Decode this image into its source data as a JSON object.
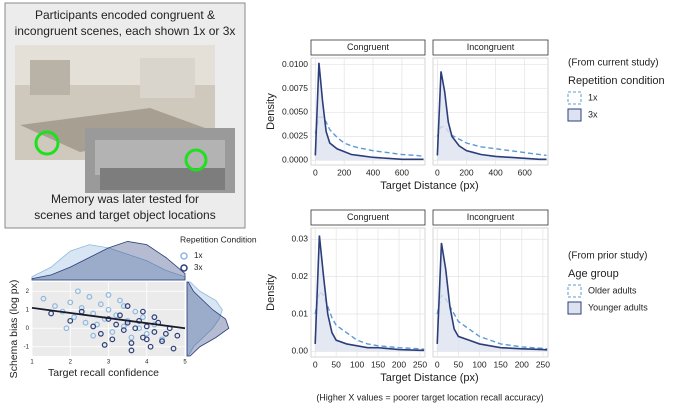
{
  "photo_panel": {
    "top_text": [
      "Participants encoded congruent &",
      "incongruent scenes, each shown 1x or 3x"
    ],
    "bottom_text": [
      "Memory was later tested for",
      "scenes and target object locations"
    ]
  },
  "footnote": "(Higher X values = poorer target location recall accuracy)",
  "chart_data": [
    {
      "type": "density",
      "facets": [
        "Congruent",
        "Incongruent"
      ],
      "xlabel": "Target Distance (px)",
      "ylabel": "Density",
      "legend_note": "(From current study)",
      "legend_title": "Repetition condition",
      "x": [
        0,
        25,
        50,
        75,
        100,
        150,
        200,
        250,
        300,
        400,
        500,
        600,
        700,
        750
      ],
      "xlim": [
        -30,
        760
      ],
      "xticks": [
        0,
        200,
        400,
        600
      ],
      "ylim": [
        -0.0005,
        0.0107
      ],
      "yticks": [
        {
          "value": 0,
          "label": "0.0000"
        },
        {
          "value": 0.0025,
          "label": "0.0025"
        },
        {
          "value": 0.005,
          "label": "0.0050"
        },
        {
          "value": 0.0075,
          "label": "0.0075"
        },
        {
          "value": 0.01,
          "label": "0.0100"
        }
      ],
      "series": [
        {
          "name": "1x",
          "color": "#5b9bd5",
          "dashed": true,
          "values": [
            [
              0.0028,
              0.0045,
              0.0045,
              0.004,
              0.0032,
              0.0024,
              0.0018,
              0.0015,
              0.0013,
              0.001,
              0.0008,
              0.0006,
              0.0005,
              0.0004
            ],
            [
              0.0025,
              0.0035,
              0.0035,
              0.003,
              0.0026,
              0.0022,
              0.0018,
              0.0016,
              0.0014,
              0.0012,
              0.001,
              0.0008,
              0.0006,
              0.0005
            ]
          ]
        },
        {
          "name": "3x",
          "color": "#2c3e7a",
          "fill": "#dde2f0",
          "values": [
            [
              0.0005,
              0.0102,
              0.0062,
              0.003,
              0.0018,
              0.0012,
              0.0009,
              0.0006,
              0.0005,
              0.0003,
              0.0002,
              0.0001,
              0.0001,
              0.0001
            ],
            [
              0.0005,
              0.0093,
              0.0072,
              0.004,
              0.0025,
              0.0015,
              0.001,
              0.0008,
              0.0006,
              0.0004,
              0.0003,
              0.0002,
              0.0001,
              0.0001
            ]
          ]
        }
      ]
    },
    {
      "type": "density",
      "facets": [
        "Congruent",
        "Incongruent"
      ],
      "xlabel": "Target Distance (px)",
      "ylabel": "Density",
      "legend_note": "(From prior study)",
      "legend_title": "Age group",
      "x": [
        0,
        10,
        20,
        30,
        40,
        50,
        75,
        100,
        125,
        150,
        200,
        250,
        260
      ],
      "xlim": [
        -10,
        262
      ],
      "xticks": [
        0,
        50,
        100,
        150,
        200,
        250
      ],
      "ylim": [
        -0.0015,
        0.033
      ],
      "yticks": [
        {
          "value": 0,
          "label": "0.00"
        },
        {
          "value": 0.01,
          "label": "0.01"
        },
        {
          "value": 0.02,
          "label": "0.02"
        },
        {
          "value": 0.03,
          "label": "0.03"
        }
      ],
      "series": [
        {
          "name": "Older adults",
          "color": "#5b9bd5",
          "dashed": true,
          "values": [
            [
              0.01,
              0.016,
              0.015,
              0.012,
              0.009,
              0.007,
              0.005,
              0.003,
              0.002,
              0.0015,
              0.001,
              0.0007,
              0.0006
            ],
            [
              0.01,
              0.015,
              0.014,
              0.012,
              0.01,
              0.008,
              0.006,
              0.004,
              0.003,
              0.002,
              0.0012,
              0.0008,
              0.0007
            ]
          ]
        },
        {
          "name": "Younger adults",
          "color": "#2c3e7a",
          "fill": "#dde2f0",
          "values": [
            [
              0.002,
              0.031,
              0.02,
              0.01,
              0.005,
              0.003,
              0.002,
              0.0015,
              0.001,
              0.001,
              0.0005,
              0.0003,
              0.0003
            ],
            [
              0.002,
              0.029,
              0.022,
              0.012,
              0.006,
              0.004,
              0.003,
              0.002,
              0.0015,
              0.001,
              0.0007,
              0.0005,
              0.0004
            ]
          ]
        }
      ]
    },
    {
      "type": "scatter",
      "xlabel": "Target recall confidence",
      "ylabel": "Schema bias (log px)",
      "legend_title": "Repetition Condition",
      "xlim": [
        1,
        5
      ],
      "xticks": [
        1,
        2,
        3,
        4,
        5
      ],
      "ylim": [
        -1.5,
        2.5
      ],
      "yticks": [
        -1,
        0,
        1,
        2
      ],
      "trend": {
        "x": [
          1,
          5
        ],
        "y": [
          1.1,
          0.0
        ],
        "color": "#1a1a2e"
      },
      "density_x": [
        1,
        1.5,
        2,
        2.5,
        3,
        3.5,
        4,
        4.5,
        5
      ],
      "density_y": [
        -1.5,
        -1,
        -0.5,
        0,
        0.5,
        1,
        1.5,
        2,
        2.5
      ],
      "density_lim": [
        0,
        0.7
      ],
      "series": [
        {
          "name": "1x",
          "color": "#8fb8e0",
          "x": [
            1.3,
            1.6,
            1.8,
            2.0,
            2.1,
            2.3,
            2.4,
            2.5,
            2.6,
            2.7,
            2.8,
            2.9,
            3.0,
            3.1,
            3.2,
            3.3,
            3.4,
            3.5,
            3.6,
            3.7,
            3.8,
            3.9,
            4.0,
            4.2,
            4.4,
            2.2,
            2.6,
            3.0,
            3.4,
            1.9
          ],
          "values": [
            1.6,
            1.2,
            0.9,
            1.4,
            0.6,
            1.1,
            0.3,
            1.7,
            0.8,
            0.2,
            1.3,
            0.5,
            1.0,
            -0.2,
            0.7,
            1.5,
            0.1,
            0.4,
            -0.5,
            0.9,
            0.0,
            0.6,
            -0.3,
            0.2,
            -0.6,
            2.0,
            -0.4,
            1.8,
            1.2,
            0.0
          ],
          "x_density": [
            0.05,
            0.2,
            0.45,
            0.55,
            0.5,
            0.4,
            0.3,
            0.15,
            0.05
          ],
          "y_density": [
            0.02,
            0.1,
            0.25,
            0.4,
            0.5,
            0.55,
            0.45,
            0.2,
            0.05
          ]
        },
        {
          "name": "3x",
          "color": "#2c3e7a",
          "x": [
            1.5,
            2.0,
            2.3,
            2.6,
            2.8,
            3.0,
            3.1,
            3.2,
            3.3,
            3.4,
            3.5,
            3.6,
            3.7,
            3.8,
            3.9,
            4.0,
            4.1,
            4.2,
            4.3,
            4.4,
            4.5,
            4.6,
            4.7,
            4.8,
            3.5,
            3.9,
            4.2,
            2.9,
            3.6,
            4.0
          ],
          "values": [
            0.8,
            0.4,
            0.9,
            0.1,
            -0.3,
            0.5,
            -0.6,
            0.2,
            0.7,
            -0.1,
            0.3,
            -0.8,
            0.0,
            0.4,
            -0.5,
            0.1,
            -1.0,
            -0.2,
            0.3,
            -0.7,
            -0.3,
            0.0,
            -1.1,
            -0.4,
            1.2,
            0.9,
            0.6,
            -0.9,
            -1.2,
            -0.6
          ],
          "x_density": [
            0.02,
            0.08,
            0.2,
            0.35,
            0.5,
            0.6,
            0.55,
            0.35,
            0.1
          ],
          "y_density": [
            0.05,
            0.2,
            0.45,
            0.65,
            0.6,
            0.4,
            0.25,
            0.1,
            0.02
          ]
        }
      ]
    }
  ]
}
